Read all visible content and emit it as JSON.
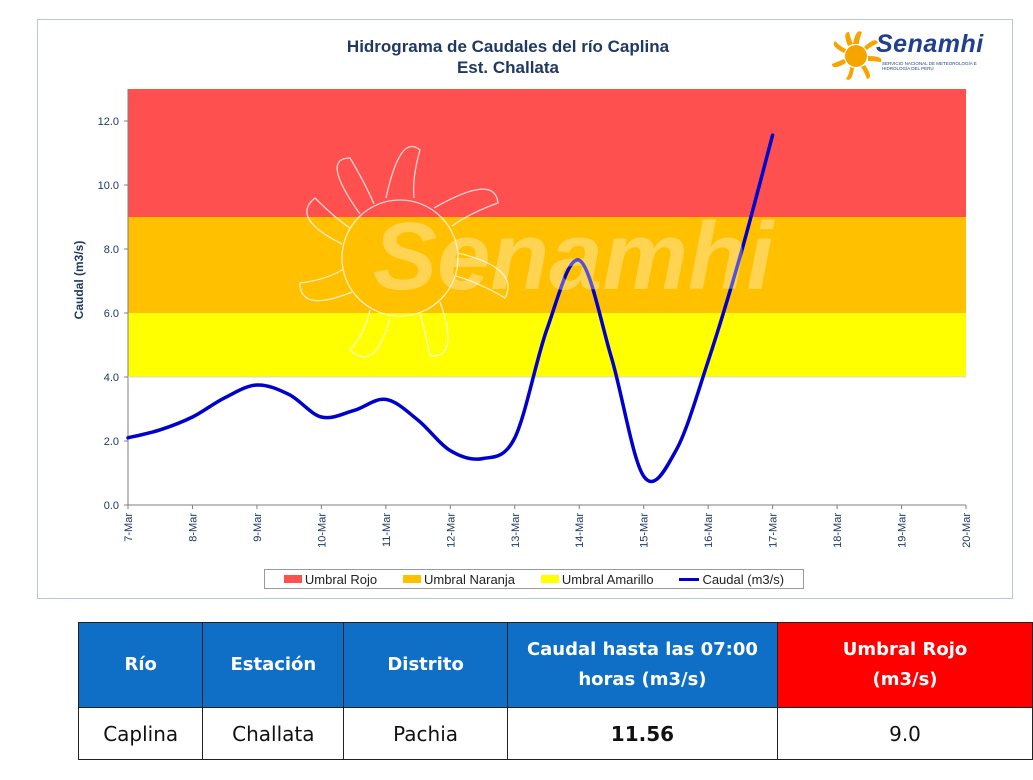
{
  "chart_data": {
    "type": "line",
    "title": "Hidrograma de Caudales del río Caplina",
    "subtitle": "Est. Challata",
    "ylabel": "Caudal (m3/s)",
    "xlabel": "",
    "ylim": [
      0,
      13
    ],
    "yticks": [
      "0.0",
      "2.0",
      "4.0",
      "6.0",
      "8.0",
      "10.0",
      "12.0"
    ],
    "categories": [
      "7-Mar",
      "8-Mar",
      "9-Mar",
      "10-Mar",
      "11-Mar",
      "12-Mar",
      "13-Mar",
      "14-Mar",
      "15-Mar",
      "16-Mar",
      "17-Mar",
      "18-Mar",
      "19-Mar",
      "20-Mar"
    ],
    "threshold_bands": [
      {
        "name": "Umbral Rojo",
        "from": 9.0,
        "to": 13.0,
        "color": "#ff5050"
      },
      {
        "name": "Umbral Naranja",
        "from": 6.0,
        "to": 9.0,
        "color": "#ffc000"
      },
      {
        "name": "Umbral Amarillo",
        "from": 4.0,
        "to": 6.0,
        "color": "#ffff00"
      }
    ],
    "series": [
      {
        "name": "Caudal (m3/s)",
        "color": "#0000cc",
        "x": [
          0,
          0.5,
          1,
          1.5,
          2,
          2.5,
          3,
          3.5,
          4,
          4.5,
          5,
          5.5,
          6,
          6.5,
          7,
          7.5,
          8,
          8.5,
          9,
          9.5,
          10
        ],
        "values": [
          2.1,
          2.35,
          2.75,
          3.35,
          3.75,
          3.45,
          2.75,
          2.95,
          3.3,
          2.65,
          1.7,
          1.45,
          2.1,
          5.5,
          7.65,
          4.6,
          0.9,
          1.7,
          4.5,
          7.8,
          11.56
        ]
      }
    ],
    "grid": false,
    "legend_position": "bottom-center"
  },
  "branding": {
    "logo_name": "Senamhi",
    "logo_subtitle": "SERVICIO NACIONAL DE METEOROLOGÍA E HIDROLOGÍA DEL PERÚ",
    "watermark": "Senamhi"
  },
  "table": {
    "headers": [
      "Río",
      "Estación",
      "Distrito",
      "Caudal hasta las 07:00 horas (m3/s)",
      "Umbral Rojo (m3/s)"
    ],
    "row": [
      "Caplina",
      "Challata",
      "Pachia",
      "11.56",
      "9.0"
    ]
  }
}
